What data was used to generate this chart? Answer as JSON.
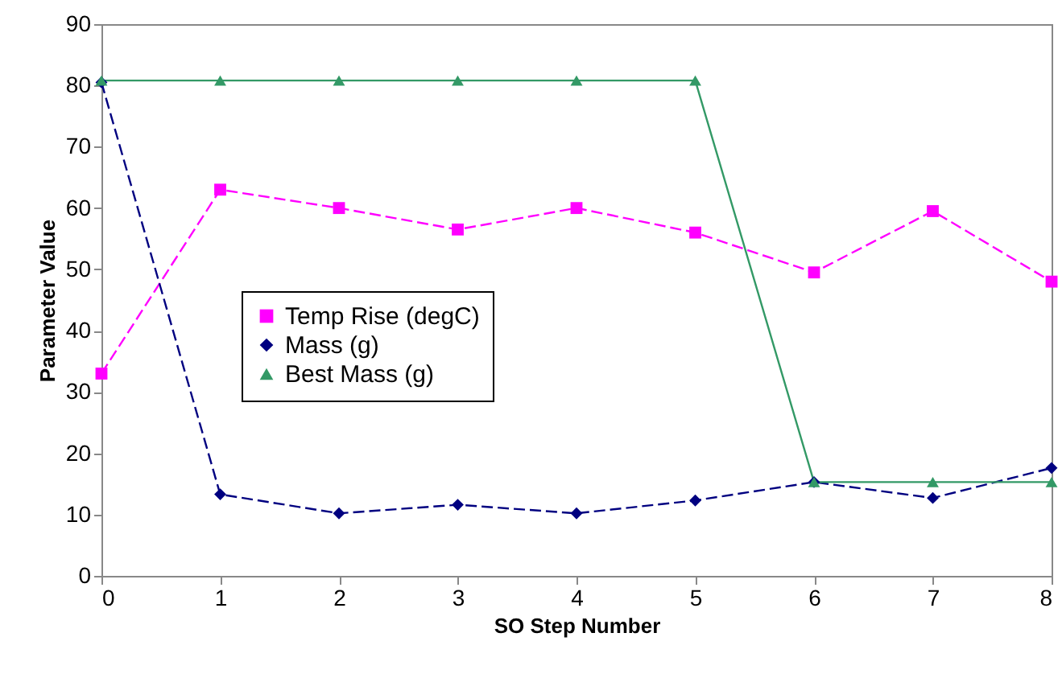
{
  "chart_data": {
    "type": "line",
    "xlabel": "SO Step Number",
    "ylabel": "Parameter Value",
    "x": [
      0,
      1,
      2,
      3,
      4,
      5,
      6,
      7,
      8
    ],
    "xlim": [
      0,
      8
    ],
    "xticks": [
      0,
      1,
      2,
      3,
      4,
      5,
      6,
      7,
      8
    ],
    "ylim": [
      0,
      90
    ],
    "yticks": [
      0,
      10,
      20,
      30,
      40,
      50,
      60,
      70,
      80,
      90
    ],
    "legend": "left",
    "series": [
      {
        "name": "Temp Rise (degC)",
        "color": "#ff00ff",
        "marker": "square",
        "line_style": "dashed",
        "values": [
          33,
          63,
          60,
          56.5,
          60,
          56,
          49.5,
          59.5,
          48
        ]
      },
      {
        "name": "Mass (g)",
        "color": "#000080",
        "marker": "diamond",
        "line_style": "dashed",
        "values": [
          80.5,
          13.3,
          10.2,
          11.6,
          10.2,
          12.3,
          15.3,
          12.7,
          17.6
        ]
      },
      {
        "name": "Best Mass (g)",
        "color": "#339966",
        "marker": "triangle",
        "line_style": "solid",
        "values": [
          80.8,
          80.8,
          80.8,
          80.8,
          80.8,
          80.8,
          15.3,
          15.3,
          15.3
        ]
      }
    ]
  }
}
